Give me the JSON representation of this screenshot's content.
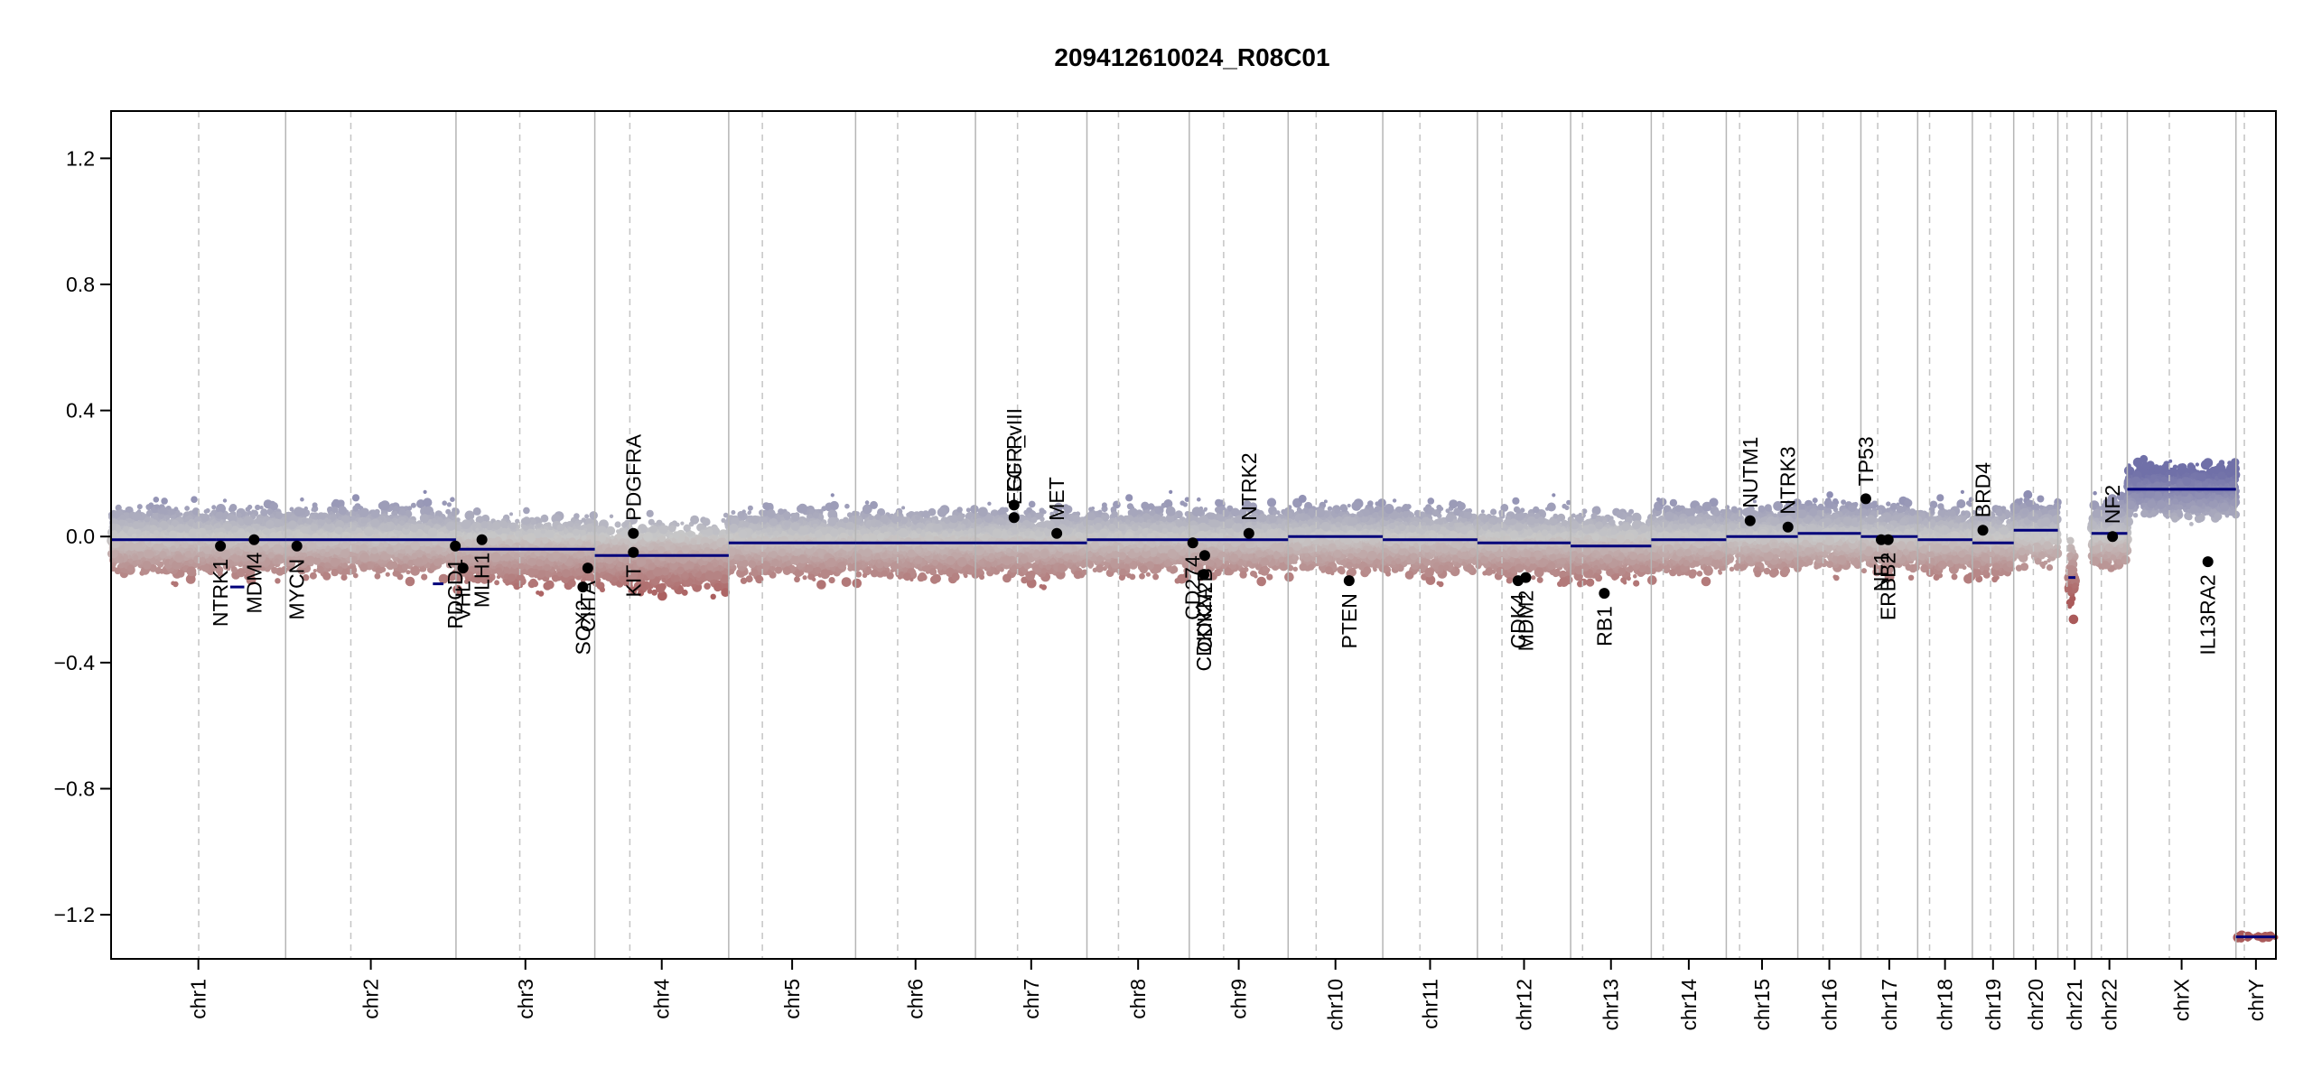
{
  "chart_data": {
    "type": "scatter",
    "title": "209412610024_R08C01",
    "xlabel": "",
    "ylabel": "",
    "ylim": [
      -1.34,
      1.35
    ],
    "y_ticks": [
      1.2,
      0.8,
      0.4,
      0.0,
      -0.4,
      -0.8,
      -1.2
    ],
    "y_tick_labels": [
      "1.2",
      "0.8",
      "0.4",
      "0.0",
      "−0.4",
      "−0.8",
      "−1.2"
    ],
    "grid": false,
    "chromosomes": [
      {
        "name": "chr1",
        "length": 249
      },
      {
        "name": "chr2",
        "length": 243
      },
      {
        "name": "chr3",
        "length": 198
      },
      {
        "name": "chr4",
        "length": 191
      },
      {
        "name": "chr5",
        "length": 181
      },
      {
        "name": "chr6",
        "length": 171
      },
      {
        "name": "chr7",
        "length": 159
      },
      {
        "name": "chr8",
        "length": 146
      },
      {
        "name": "chr9",
        "length": 141
      },
      {
        "name": "chr10",
        "length": 135
      },
      {
        "name": "chr11",
        "length": 135
      },
      {
        "name": "chr12",
        "length": 133
      },
      {
        "name": "chr13",
        "length": 115
      },
      {
        "name": "chr14",
        "length": 107
      },
      {
        "name": "chr15",
        "length": 102
      },
      {
        "name": "chr16",
        "length": 90
      },
      {
        "name": "chr17",
        "length": 81
      },
      {
        "name": "chr18",
        "length": 78
      },
      {
        "name": "chr19",
        "length": 59
      },
      {
        "name": "chr20",
        "length": 63
      },
      {
        "name": "chr21",
        "length": 48
      },
      {
        "name": "chr22",
        "length": 51
      },
      {
        "name": "chrX",
        "length": 155
      },
      {
        "name": "chrY",
        "length": 57
      }
    ],
    "centromeres": [
      {
        "chr": "chr1",
        "pos": 125
      },
      {
        "chr": "chr2",
        "pos": 93
      },
      {
        "chr": "chr3",
        "pos": 91
      },
      {
        "chr": "chr4",
        "pos": 50
      },
      {
        "chr": "chr5",
        "pos": 48
      },
      {
        "chr": "chr6",
        "pos": 60
      },
      {
        "chr": "chr7",
        "pos": 60
      },
      {
        "chr": "chr8",
        "pos": 45
      },
      {
        "chr": "chr9",
        "pos": 49
      },
      {
        "chr": "chr10",
        "pos": 40
      },
      {
        "chr": "chr11",
        "pos": 53
      },
      {
        "chr": "chr12",
        "pos": 35
      },
      {
        "chr": "chr13",
        "pos": 17
      },
      {
        "chr": "chr14",
        "pos": 17
      },
      {
        "chr": "chr15",
        "pos": 19
      },
      {
        "chr": "chr16",
        "pos": 36
      },
      {
        "chr": "chr17",
        "pos": 24
      },
      {
        "chr": "chr18",
        "pos": 17
      },
      {
        "chr": "chr19",
        "pos": 26
      },
      {
        "chr": "chr20",
        "pos": 28
      },
      {
        "chr": "chr21",
        "pos": 13
      },
      {
        "chr": "chr22",
        "pos": 14
      },
      {
        "chr": "chrX",
        "pos": 60
      },
      {
        "chr": "chrY",
        "pos": 12
      }
    ],
    "segments": [
      {
        "chr": "chr1",
        "start": 0,
        "end": 150,
        "value": -0.01
      },
      {
        "chr": "chr1",
        "start": 150,
        "end": 249,
        "value": -0.01
      },
      {
        "chr": "chr2",
        "start": 0,
        "end": 243,
        "value": -0.01
      },
      {
        "chr": "chr3",
        "start": 0,
        "end": 198,
        "value": -0.04
      },
      {
        "chr": "chr4",
        "start": 0,
        "end": 191,
        "value": -0.06
      },
      {
        "chr": "chr5",
        "start": 0,
        "end": 181,
        "value": -0.02
      },
      {
        "chr": "chr6",
        "start": 0,
        "end": 171,
        "value": -0.02
      },
      {
        "chr": "chr7",
        "start": 0,
        "end": 159,
        "value": -0.02
      },
      {
        "chr": "chr8",
        "start": 0,
        "end": 146,
        "value": -0.01
      },
      {
        "chr": "chr9",
        "start": 0,
        "end": 141,
        "value": -0.01
      },
      {
        "chr": "chr10",
        "start": 0,
        "end": 135,
        "value": 0.0
      },
      {
        "chr": "chr11",
        "start": 0,
        "end": 135,
        "value": -0.01
      },
      {
        "chr": "chr12",
        "start": 0,
        "end": 133,
        "value": -0.02
      },
      {
        "chr": "chr13",
        "start": 0,
        "end": 115,
        "value": -0.03
      },
      {
        "chr": "chr14",
        "start": 0,
        "end": 107,
        "value": -0.01
      },
      {
        "chr": "chr15",
        "start": 0,
        "end": 102,
        "value": 0.0
      },
      {
        "chr": "chr16",
        "start": 0,
        "end": 90,
        "value": 0.01
      },
      {
        "chr": "chr17",
        "start": 0,
        "end": 81,
        "value": 0.0
      },
      {
        "chr": "chr18",
        "start": 0,
        "end": 78,
        "value": -0.01
      },
      {
        "chr": "chr19",
        "start": 0,
        "end": 59,
        "value": -0.02
      },
      {
        "chr": "chr20",
        "start": 0,
        "end": 63,
        "value": 0.02
      },
      {
        "chr": "chr21",
        "start": 15,
        "end": 25,
        "value": -0.13
      },
      {
        "chr": "chr22",
        "start": 0,
        "end": 51,
        "value": 0.01
      },
      {
        "chr": "chrX",
        "start": 0,
        "end": 155,
        "value": 0.15
      },
      {
        "chr": "chrY",
        "start": 0,
        "end": 57,
        "value": -1.27
      }
    ],
    "extra_segments": [
      {
        "chr": "chr1",
        "start": 170,
        "end": 190,
        "value": -0.16
      },
      {
        "chr": "chr2",
        "start": 210,
        "end": 225,
        "value": -0.15
      }
    ],
    "genes": [
      {
        "name": "NTRK1",
        "chr": "chr1",
        "pos": 156,
        "value": -0.03
      },
      {
        "name": "MDM4",
        "chr": "chr1",
        "pos": 204,
        "value": -0.01
      },
      {
        "name": "MYCN",
        "chr": "chr2",
        "pos": 16,
        "value": -0.03
      },
      {
        "name": "PDCD1",
        "chr": "chr2",
        "pos": 242,
        "value": -0.03
      },
      {
        "name": "VHL",
        "chr": "chr3",
        "pos": 10,
        "value": -0.1
      },
      {
        "name": "MLH1",
        "chr": "chr3",
        "pos": 37,
        "value": -0.01
      },
      {
        "name": "SOX2",
        "chr": "chr3",
        "pos": 181,
        "value": -0.16
      },
      {
        "name": "CIITA",
        "chr": "chr3",
        "pos": 188,
        "value": -0.1
      },
      {
        "name": "KIT",
        "chr": "chr4",
        "pos": 55,
        "value": -0.05
      },
      {
        "name": "PDGFRA",
        "chr": "chr4",
        "pos": 55,
        "value": 0.01
      },
      {
        "name": "EGFR",
        "chr": "chr7",
        "pos": 55,
        "value": 0.1
      },
      {
        "name": "EGFR_vIII",
        "chr": "chr7",
        "pos": 55,
        "value": 0.06
      },
      {
        "name": "MET",
        "chr": "chr7",
        "pos": 116,
        "value": 0.01
      },
      {
        "name": "CD274",
        "chr": "chr9",
        "pos": 5,
        "value": -0.02
      },
      {
        "name": "CDKN2A",
        "chr": "chr9",
        "pos": 21,
        "value": -0.12
      },
      {
        "name": "CDKN2B",
        "chr": "chr9",
        "pos": 22,
        "value": -0.06
      },
      {
        "name": "NTRK2",
        "chr": "chr9",
        "pos": 85,
        "value": 0.01
      },
      {
        "name": "PTEN",
        "chr": "chr10",
        "pos": 87,
        "value": -0.14
      },
      {
        "name": "CDK4",
        "chr": "chr12",
        "pos": 58,
        "value": -0.14
      },
      {
        "name": "MDM2",
        "chr": "chr12",
        "pos": 69,
        "value": -0.13
      },
      {
        "name": "RB1",
        "chr": "chr13",
        "pos": 48,
        "value": -0.18
      },
      {
        "name": "NUTM1",
        "chr": "chr15",
        "pos": 34,
        "value": 0.05
      },
      {
        "name": "NTRK3",
        "chr": "chr15",
        "pos": 88,
        "value": 0.03
      },
      {
        "name": "TP53",
        "chr": "chr17",
        "pos": 7,
        "value": 0.12
      },
      {
        "name": "NF1",
        "chr": "chr17",
        "pos": 29,
        "value": -0.01
      },
      {
        "name": "ERBB2",
        "chr": "chr17",
        "pos": 39,
        "value": -0.01
      },
      {
        "name": "BRD4",
        "chr": "chr19",
        "pos": 15,
        "value": 0.02
      },
      {
        "name": "NF2",
        "chr": "chr22",
        "pos": 30,
        "value": 0.0
      },
      {
        "name": "IL13RA2",
        "chr": "chrX",
        "pos": 115,
        "value": -0.08
      }
    ]
  }
}
